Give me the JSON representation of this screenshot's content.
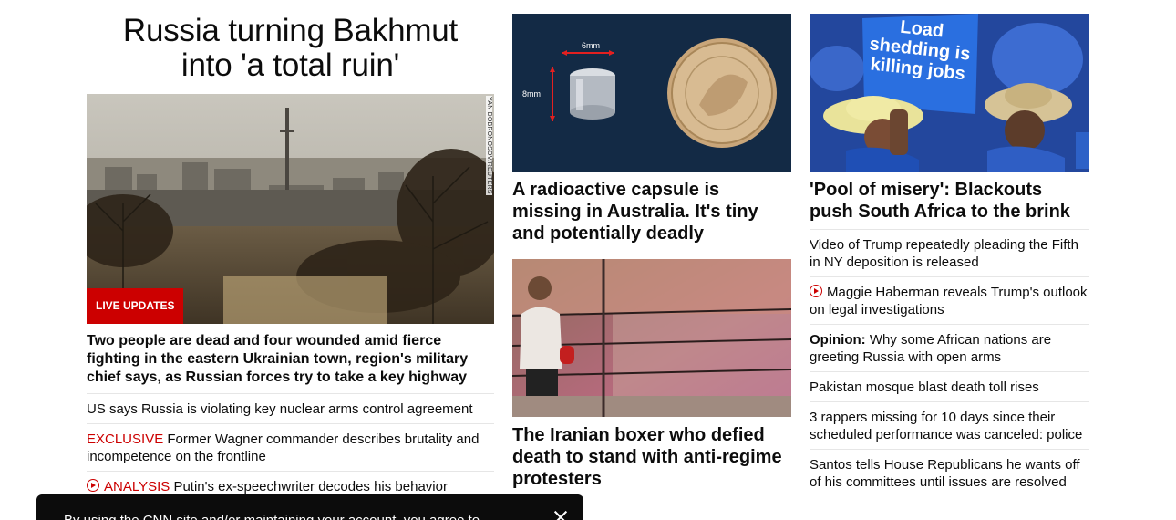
{
  "lead": {
    "title_line1": "Russia turning Bakhmut",
    "title_line2": "into 'a total ruin'",
    "image_credit": "YAN DOBRONOSOV/REUTERS",
    "badge": "LIVE UPDATES",
    "summary": "Two people are dead and four wounded amid fierce fighting in the eastern Ukrainian town, region's military chief says, as Russian forces try to take a key highway",
    "links": [
      {
        "prefix": "",
        "text": "US says Russia is violating key nuclear arms control agreement"
      },
      {
        "prefix": "EXCLUSIVE",
        "text": "Former Wagner commander describes brutality and incompetence on the frontline"
      },
      {
        "prefix": "ANALYSIS",
        "text": "Putin's ex-speechwriter decodes his behavior"
      }
    ]
  },
  "middle": {
    "card1": {
      "image_label_width": "6mm",
      "image_label_height": "8mm",
      "title": "A radioactive capsule is missing in Australia. It's tiny and potentially deadly"
    },
    "card2": {
      "title": "The Iranian boxer who defied death to stand with anti-regime protesters"
    }
  },
  "right": {
    "image_sign": [
      "Load",
      "shedding is",
      "killing jobs"
    ],
    "title": "'Pool of misery': Blackouts push South Africa to the brink",
    "links": [
      {
        "prefix": "",
        "text": "Video of Trump repeatedly pleading the Fifth in NY deposition is released"
      },
      {
        "prefix": "",
        "text": "Maggie Haberman reveals Trump's outlook on legal investigations"
      },
      {
        "prefix": "Opinion:",
        "text": "Why some African nations are greeting Russia with open arms"
      },
      {
        "prefix": "",
        "text": "Pakistan mosque blast death toll rises"
      },
      {
        "prefix": "",
        "text": "3 rappers missing for 10 days since their scheduled performance was canceled: police"
      },
      {
        "prefix": "",
        "text": "Santos tells House Republicans he wants off of his committees until issues are resolved"
      }
    ]
  },
  "toast": {
    "text": "By using the CNN site and/or maintaining your account, you agree to..."
  },
  "colors": {
    "accent_red": "#cc0000",
    "text": "#0c0c0c",
    "divider": "#e6e6e6",
    "toast_bg": "#0c0c0c"
  }
}
